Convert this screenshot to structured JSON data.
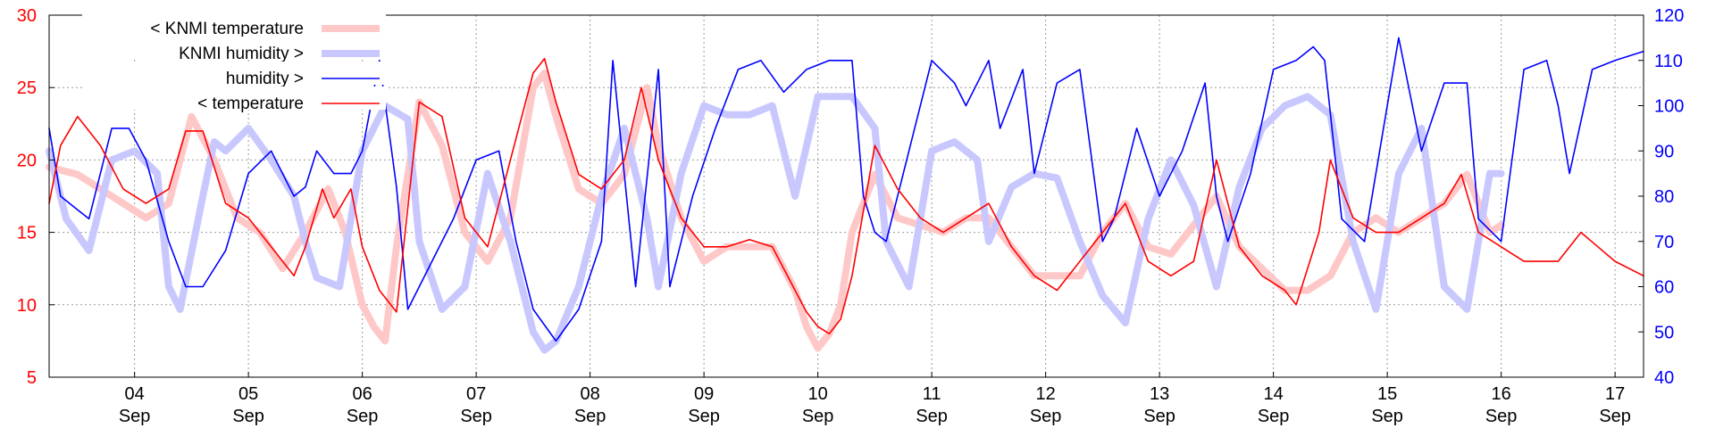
{
  "chart_data": {
    "type": "line",
    "title": "",
    "xlabel": "",
    "ylabel_left": "",
    "ylabel_right": "",
    "x_unit": "days of September",
    "xlim": [
      3.25,
      17.25
    ],
    "ylim_left": [
      5,
      30
    ],
    "ylim_right": [
      40,
      120
    ],
    "left_ticks": [
      "5",
      "10",
      "15",
      "20",
      "25",
      "30"
    ],
    "right_ticks": [
      "40",
      "50",
      "60",
      "70",
      "80",
      "90",
      "100",
      "110",
      "120"
    ],
    "x_ticks": [
      {
        "day": 4,
        "label": "04",
        "month": "Sep"
      },
      {
        "day": 5,
        "label": "05",
        "month": "Sep"
      },
      {
        "day": 6,
        "label": "06",
        "month": "Sep"
      },
      {
        "day": 7,
        "label": "07",
        "month": "Sep"
      },
      {
        "day": 8,
        "label": "08",
        "month": "Sep"
      },
      {
        "day": 9,
        "label": "09",
        "month": "Sep"
      },
      {
        "day": 10,
        "label": "10",
        "month": "Sep"
      },
      {
        "day": 11,
        "label": "11",
        "month": "Sep"
      },
      {
        "day": 12,
        "label": "12",
        "month": "Sep"
      },
      {
        "day": 13,
        "label": "13",
        "month": "Sep"
      },
      {
        "day": 14,
        "label": "14",
        "month": "Sep"
      },
      {
        "day": 15,
        "label": "15",
        "month": "Sep"
      },
      {
        "day": 16,
        "label": "16",
        "month": "Sep"
      },
      {
        "day": 17,
        "label": "17",
        "month": "Sep"
      }
    ],
    "grid": true,
    "legend_position": "top-left",
    "series": [
      {
        "name": "< KNMI temperature",
        "axis": "left",
        "color": "#ffc8c8",
        "style": "thick",
        "x": [
          3.25,
          3.5,
          3.7,
          3.9,
          4.1,
          4.3,
          4.5,
          4.7,
          4.9,
          5.1,
          5.3,
          5.5,
          5.7,
          5.85,
          6.0,
          6.1,
          6.2,
          6.3,
          6.5,
          6.7,
          6.9,
          7.1,
          7.3,
          7.5,
          7.6,
          7.7,
          7.9,
          8.1,
          8.3,
          8.5,
          8.6,
          8.8,
          9.0,
          9.2,
          9.4,
          9.6,
          9.8,
          9.9,
          10.0,
          10.1,
          10.2,
          10.3,
          10.5,
          10.7,
          10.9,
          11.1,
          11.3,
          11.5,
          11.7,
          11.9,
          12.1,
          12.3,
          12.5,
          12.7,
          12.9,
          13.1,
          13.3,
          13.5,
          13.7,
          13.9,
          14.1,
          14.3,
          14.5,
          14.7,
          14.9,
          15.1,
          15.3,
          15.5,
          15.7,
          15.9,
          16.0
        ],
        "values": [
          19.5,
          19,
          18,
          17,
          16,
          17,
          23,
          20,
          16,
          15,
          12.5,
          15,
          18,
          15,
          10,
          8.5,
          7.5,
          14,
          24,
          21,
          15,
          13,
          16,
          25,
          26,
          23,
          18,
          17,
          19,
          25,
          21,
          16,
          13,
          14,
          14,
          14,
          11,
          8.5,
          7,
          8,
          10,
          15,
          19,
          16,
          15.5,
          15,
          16,
          16,
          14,
          12,
          12,
          12,
          15,
          17,
          14,
          13.5,
          15.5,
          17.5,
          14,
          12.5,
          11,
          11,
          12,
          15,
          16,
          15,
          16,
          17,
          19,
          15,
          15.5
        ]
      },
      {
        "name": "KNMI humidity >",
        "axis": "right",
        "color": "#c8c8ff",
        "style": "thick",
        "x": [
          3.25,
          3.4,
          3.6,
          3.8,
          4.0,
          4.2,
          4.3,
          4.4,
          4.6,
          4.7,
          4.8,
          5.0,
          5.2,
          5.4,
          5.5,
          5.6,
          5.8,
          5.9,
          6.0,
          6.2,
          6.4,
          6.5,
          6.7,
          6.9,
          7.1,
          7.3,
          7.5,
          7.6,
          7.7,
          7.9,
          8.1,
          8.3,
          8.5,
          8.6,
          8.8,
          9.0,
          9.2,
          9.4,
          9.6,
          9.8,
          10.0,
          10.2,
          10.3,
          10.5,
          10.6,
          10.8,
          11.0,
          11.2,
          11.4,
          11.5,
          11.7,
          11.9,
          12.1,
          12.3,
          12.5,
          12.7,
          12.9,
          13.1,
          13.3,
          13.5,
          13.7,
          13.9,
          14.1,
          14.3,
          14.5,
          14.7,
          14.9,
          15.1,
          15.3,
          15.5,
          15.7,
          15.9,
          16.0
        ],
        "values": [
          90,
          75,
          68,
          88,
          90,
          85,
          60,
          55,
          80,
          92,
          90,
          95,
          88,
          80,
          70,
          62,
          60,
          75,
          90,
          100,
          97,
          70,
          55,
          60,
          85,
          70,
          50,
          46,
          48,
          60,
          80,
          95,
          75,
          60,
          85,
          100,
          98,
          98,
          100,
          80,
          102,
          102,
          102,
          95,
          70,
          60,
          90,
          92,
          88,
          70,
          82,
          85,
          84,
          70,
          58,
          52,
          75,
          88,
          78,
          60,
          82,
          95,
          100,
          102,
          98,
          70,
          55,
          85,
          95,
          60,
          55,
          85,
          85
        ]
      },
      {
        "name": "humidity >",
        "axis": "right",
        "color": "#0000ff",
        "style": "thin",
        "x": [
          3.25,
          3.35,
          3.45,
          3.6,
          3.8,
          3.95,
          4.1,
          4.3,
          4.45,
          4.6,
          4.8,
          5.0,
          5.2,
          5.4,
          5.5,
          5.6,
          5.75,
          5.9,
          6.0,
          6.15,
          6.3,
          6.4,
          6.6,
          6.8,
          7.0,
          7.2,
          7.35,
          7.5,
          7.7,
          7.9,
          8.1,
          8.2,
          8.4,
          8.6,
          8.7,
          8.9,
          9.1,
          9.3,
          9.5,
          9.7,
          9.9,
          10.1,
          10.3,
          10.4,
          10.5,
          10.6,
          10.8,
          11.0,
          11.2,
          11.3,
          11.5,
          11.6,
          11.8,
          11.9,
          12.1,
          12.3,
          12.5,
          12.6,
          12.8,
          13.0,
          13.2,
          13.4,
          13.5,
          13.6,
          13.8,
          14.0,
          14.2,
          14.35,
          14.45,
          14.6,
          14.8,
          15.0,
          15.1,
          15.3,
          15.5,
          15.7,
          15.8,
          16.0,
          16.2,
          16.4,
          16.5,
          16.6,
          16.8,
          17.0,
          17.25
        ],
        "values": [
          95,
          80,
          78,
          75,
          95,
          95,
          88,
          70,
          60,
          60,
          68,
          85,
          90,
          80,
          82,
          90,
          85,
          85,
          90,
          110,
          82,
          55,
          65,
          75,
          88,
          90,
          70,
          55,
          48,
          55,
          70,
          110,
          60,
          108,
          60,
          80,
          95,
          108,
          110,
          103,
          108,
          110,
          110,
          80,
          72,
          70,
          90,
          110,
          105,
          100,
          110,
          95,
          108,
          85,
          105,
          108,
          70,
          75,
          95,
          80,
          90,
          105,
          80,
          70,
          85,
          108,
          110,
          113,
          110,
          75,
          70,
          100,
          115,
          90,
          105,
          105,
          75,
          70,
          108,
          110,
          100,
          85,
          108,
          110,
          112
        ]
      },
      {
        "name": "< temperature",
        "axis": "left",
        "color": "#ff0000",
        "style": "thin",
        "x": [
          3.25,
          3.35,
          3.5,
          3.7,
          3.9,
          4.1,
          4.3,
          4.45,
          4.6,
          4.8,
          5.0,
          5.2,
          5.4,
          5.5,
          5.65,
          5.75,
          5.9,
          6.0,
          6.15,
          6.3,
          6.5,
          6.7,
          6.9,
          7.1,
          7.3,
          7.5,
          7.6,
          7.7,
          7.9,
          8.1,
          8.3,
          8.45,
          8.6,
          8.8,
          9.0,
          9.2,
          9.4,
          9.6,
          9.8,
          9.9,
          10.0,
          10.1,
          10.2,
          10.3,
          10.5,
          10.7,
          10.9,
          11.1,
          11.3,
          11.5,
          11.7,
          11.9,
          12.1,
          12.3,
          12.5,
          12.7,
          12.9,
          13.1,
          13.3,
          13.5,
          13.7,
          13.9,
          14.1,
          14.2,
          14.4,
          14.5,
          14.7,
          14.9,
          15.1,
          15.3,
          15.5,
          15.65,
          15.8,
          16.0,
          16.2,
          16.5,
          16.7,
          17.0,
          17.25
        ],
        "values": [
          17,
          21,
          23,
          21,
          18,
          17,
          18,
          22,
          22,
          17,
          16,
          14,
          12,
          14,
          18,
          16,
          18,
          14,
          11,
          9.5,
          24,
          23,
          16,
          14,
          20,
          26,
          27,
          24,
          19,
          18,
          20,
          25,
          20,
          16,
          14,
          14,
          14.5,
          14,
          11,
          9.5,
          8.5,
          8,
          9,
          12,
          21,
          18,
          16,
          15,
          16,
          17,
          14,
          12,
          11,
          13,
          15,
          17,
          13,
          12,
          13,
          20,
          14,
          12,
          11,
          10,
          15,
          20,
          16,
          15,
          15,
          16,
          17,
          19,
          15,
          14,
          13,
          13,
          15,
          13,
          12
        ]
      }
    ]
  }
}
